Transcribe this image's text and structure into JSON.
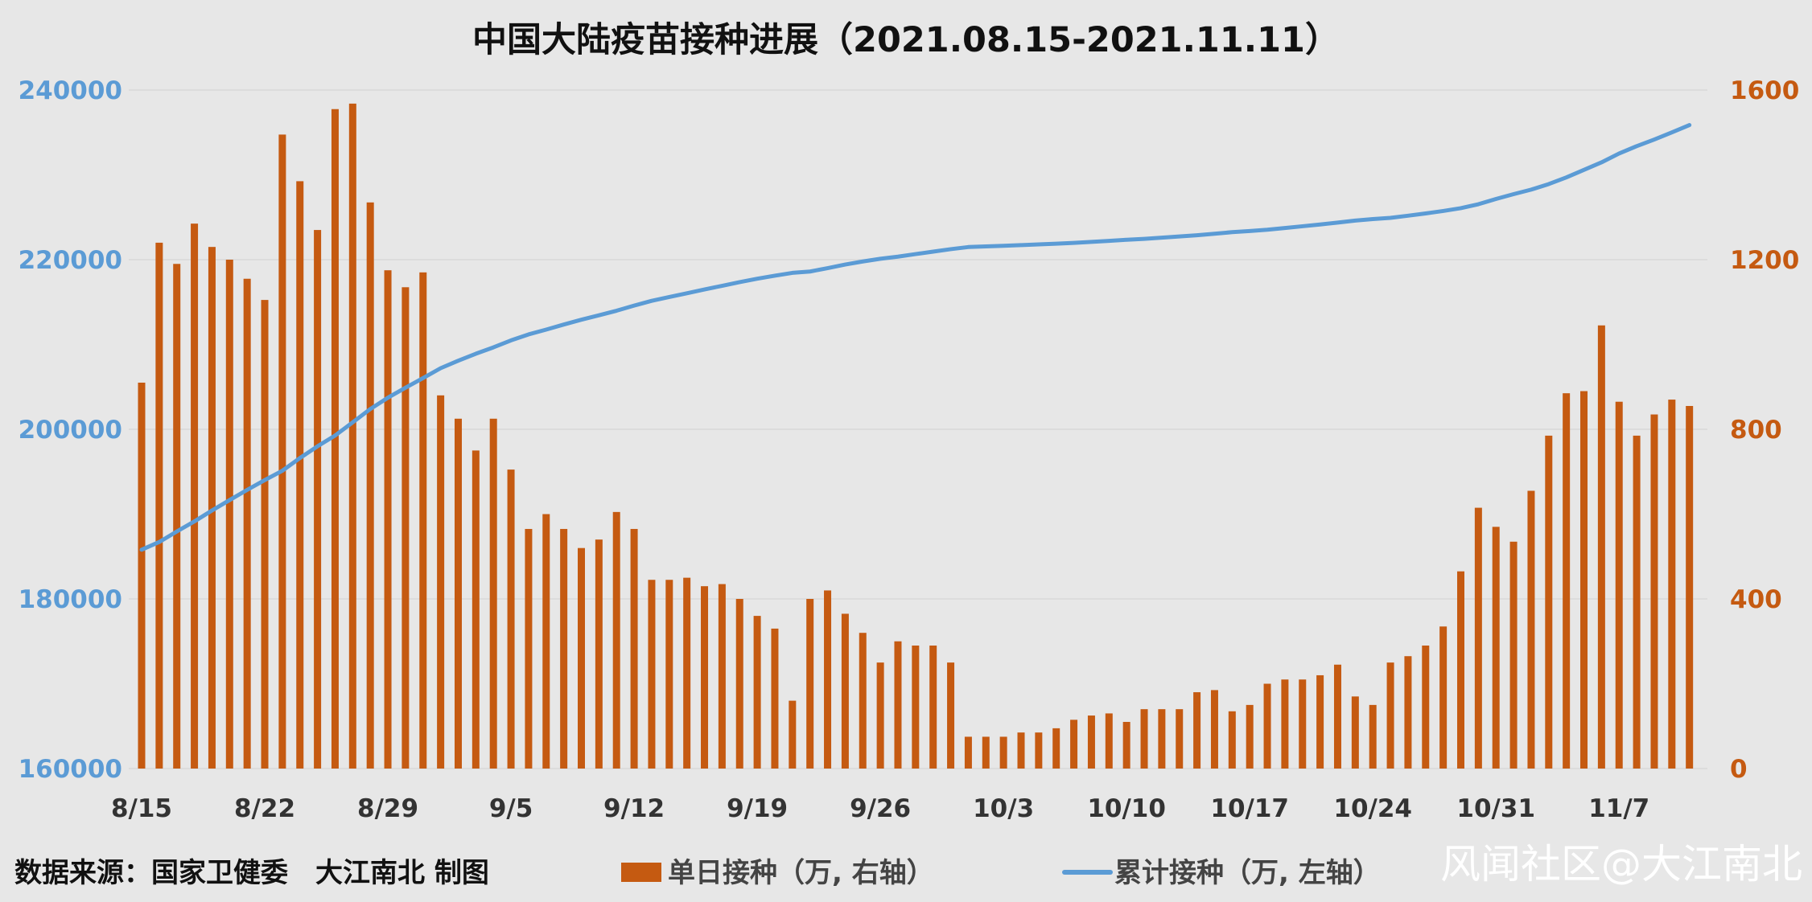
{
  "chart_data": {
    "type": "bar+line",
    "title": "中国大陆疫苗接种进展（2021.08.15-2021.11.11）",
    "source": "数据来源：国家卫健委　大江南北 制图",
    "watermark": "风闻社区@大江南北",
    "colors": {
      "bar": "#c55a11",
      "line": "#5b9bd5",
      "grid": "#d9d9d9",
      "background": "#e7e7e7"
    },
    "legend": {
      "position": "bottom",
      "items": [
        {
          "label": "单日接种（万, 右轴）",
          "type": "bar",
          "color": "#c55a11"
        },
        {
          "label": "累计接种（万, 左轴）",
          "type": "line",
          "color": "#5b9bd5"
        }
      ]
    },
    "x_ticks": [
      "8/15",
      "8/22",
      "8/29",
      "9/5",
      "9/12",
      "9/19",
      "9/26",
      "10/3",
      "10/10",
      "10/17",
      "10/24",
      "10/31",
      "11/7"
    ],
    "y_left": {
      "min": 160000,
      "max": 240000,
      "ticks": [
        160000,
        180000,
        200000,
        220000,
        240000
      ]
    },
    "y_right": {
      "min": 0,
      "max": 1600,
      "ticks": [
        0,
        400,
        800,
        1200,
        1600
      ]
    },
    "grid": true,
    "series": [
      {
        "name": "单日接种（万, 右轴）",
        "type": "bar",
        "axis": "right",
        "values": [
          910,
          1240,
          1190,
          1285,
          1230,
          1200,
          1155,
          1105,
          1495,
          1385,
          1270,
          1555,
          1568,
          1335,
          1175,
          1135,
          1170,
          880,
          825,
          750,
          825,
          705,
          565,
          600,
          565,
          520,
          540,
          605,
          565,
          445,
          445,
          450,
          430,
          435,
          400,
          360,
          330,
          160,
          400,
          420,
          365,
          320,
          250,
          300,
          290,
          290,
          250,
          75,
          75,
          75,
          85,
          85,
          95,
          115,
          125,
          130,
          110,
          140,
          140,
          140,
          180,
          185,
          135,
          150,
          200,
          210,
          210,
          220,
          245,
          170,
          150,
          250,
          265,
          290,
          335,
          465,
          615,
          570,
          535,
          655,
          785,
          885,
          890,
          1045,
          865,
          785,
          835,
          870,
          855
        ]
      },
      {
        "name": "累计接种（万, 左轴）",
        "type": "line",
        "axis": "left",
        "values": [
          185800,
          186710,
          187950,
          189140,
          190425,
          191655,
          192855,
          194010,
          195115,
          196610,
          197995,
          199265,
          200820,
          202388,
          203723,
          204898,
          206033,
          207203,
          208083,
          208908,
          209658,
          210483,
          211188,
          211753,
          212353,
          212918,
          213438,
          213978,
          214583,
          215148,
          215593,
          216038,
          216488,
          216918,
          217353,
          217753,
          218113,
          218443,
          218603,
          219003,
          219423,
          219788,
          220108,
          220358,
          220658,
          220948,
          221238,
          221488,
          221563,
          221638,
          221713,
          221798,
          221883,
          221978,
          222093,
          222218,
          222348,
          222458,
          222598,
          222738,
          222878,
          223058,
          223243,
          223378,
          223528,
          223728,
          223938,
          224148,
          224368,
          224613,
          224783,
          224933,
          225183,
          225448,
          225738,
          226073,
          226538,
          227153,
          227723,
          228258,
          228913,
          229698,
          230583,
          231473,
          232518,
          233383,
          234168,
          235003,
          235873
        ]
      }
    ]
  }
}
